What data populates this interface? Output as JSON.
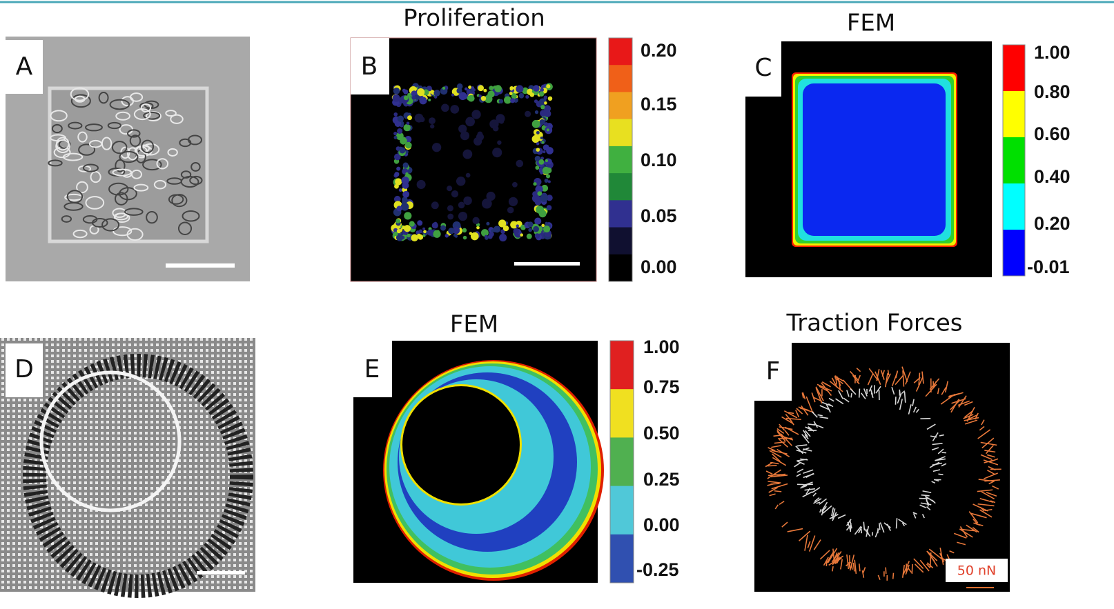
{
  "panels": [
    {
      "label": "A"
    },
    {
      "label": "B",
      "title": "Proliferation",
      "colorbar": [
        "0.20",
        "0.15",
        "0.10",
        "0.05",
        "0.00"
      ]
    },
    {
      "label": "C",
      "title": "FEM",
      "colorbar": [
        "1.00",
        "0.80",
        "0.60",
        "0.40",
        "0.20",
        "-0.01"
      ]
    },
    {
      "label": "D"
    },
    {
      "label": "E",
      "title": "FEM",
      "colorbar": [
        "1.00",
        "0.75",
        "0.50",
        "0.25",
        "0.00",
        "-0.25"
      ]
    },
    {
      "label": "F",
      "title": "Traction Forces",
      "scale_label": "50 nN"
    }
  ]
}
